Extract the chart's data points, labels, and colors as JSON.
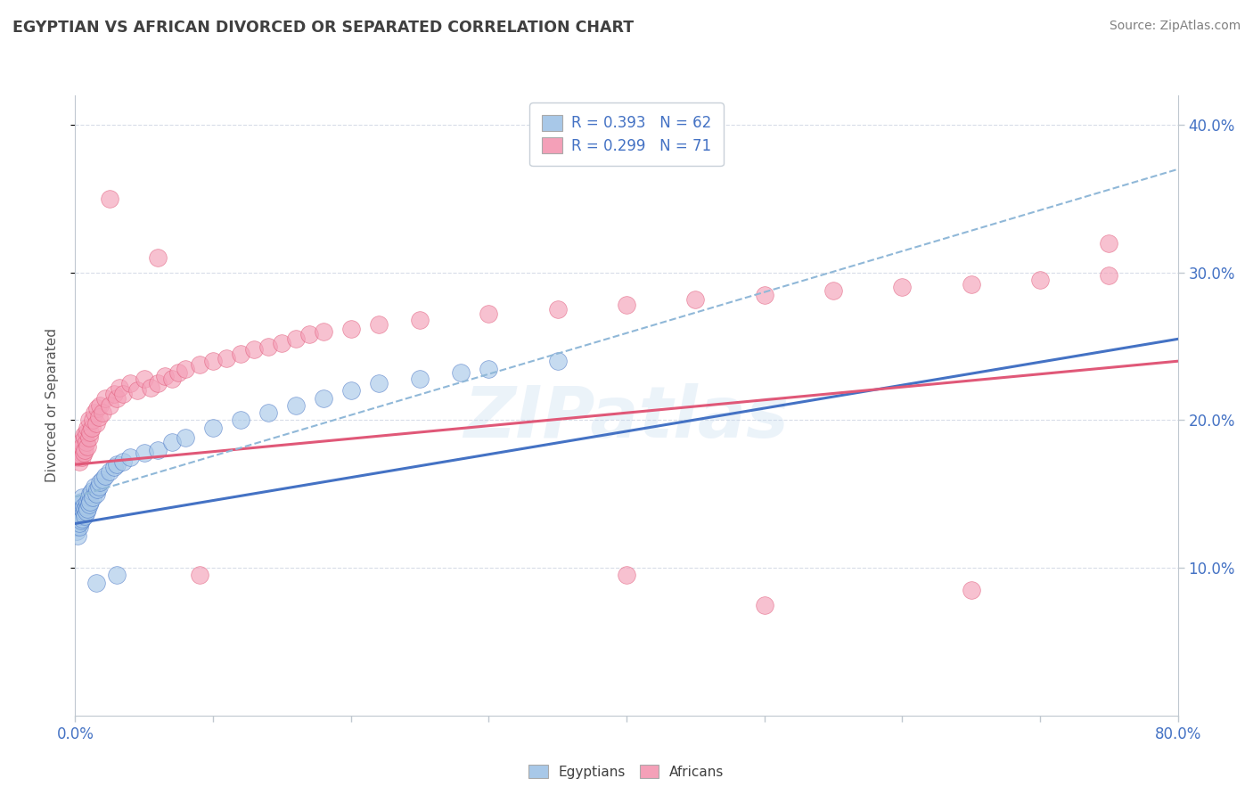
{
  "title": "EGYPTIAN VS AFRICAN DIVORCED OR SEPARATED CORRELATION CHART",
  "source": "Source: ZipAtlas.com",
  "ylabel": "Divorced or Separated",
  "watermark": "ZIPatlas",
  "egyptian_color": "#a8c8e8",
  "african_color": "#f4a0b8",
  "egyptian_line_color": "#4472c4",
  "african_line_color": "#e05878",
  "trendline_dash_color": "#90b8d8",
  "bg_color": "#ffffff",
  "grid_color": "#d8dde8",
  "xlim": [
    0.0,
    0.8
  ],
  "ylim": [
    0.0,
    0.42
  ],
  "y_ticks_positions": [
    0.1,
    0.2,
    0.3,
    0.4
  ],
  "background_plot": "#ffffff",
  "egyptians_scatter": [
    [
      0.001,
      0.13
    ],
    [
      0.001,
      0.125
    ],
    [
      0.001,
      0.135
    ],
    [
      0.001,
      0.128
    ],
    [
      0.002,
      0.132
    ],
    [
      0.002,
      0.138
    ],
    [
      0.002,
      0.122
    ],
    [
      0.002,
      0.14
    ],
    [
      0.003,
      0.135
    ],
    [
      0.003,
      0.128
    ],
    [
      0.003,
      0.142
    ],
    [
      0.003,
      0.13
    ],
    [
      0.004,
      0.138
    ],
    [
      0.004,
      0.132
    ],
    [
      0.004,
      0.145
    ],
    [
      0.004,
      0.135
    ],
    [
      0.005,
      0.14
    ],
    [
      0.005,
      0.133
    ],
    [
      0.005,
      0.148
    ],
    [
      0.006,
      0.138
    ],
    [
      0.006,
      0.142
    ],
    [
      0.007,
      0.14
    ],
    [
      0.007,
      0.135
    ],
    [
      0.008,
      0.142
    ],
    [
      0.008,
      0.138
    ],
    [
      0.009,
      0.145
    ],
    [
      0.009,
      0.14
    ],
    [
      0.01,
      0.148
    ],
    [
      0.01,
      0.143
    ],
    [
      0.011,
      0.15
    ],
    [
      0.011,
      0.145
    ],
    [
      0.012,
      0.152
    ],
    [
      0.013,
      0.148
    ],
    [
      0.014,
      0.155
    ],
    [
      0.015,
      0.15
    ],
    [
      0.016,
      0.153
    ],
    [
      0.017,
      0.155
    ],
    [
      0.018,
      0.158
    ],
    [
      0.02,
      0.16
    ],
    [
      0.022,
      0.162
    ],
    [
      0.025,
      0.165
    ],
    [
      0.028,
      0.168
    ],
    [
      0.03,
      0.17
    ],
    [
      0.035,
      0.172
    ],
    [
      0.04,
      0.175
    ],
    [
      0.05,
      0.178
    ],
    [
      0.06,
      0.18
    ],
    [
      0.07,
      0.185
    ],
    [
      0.08,
      0.188
    ],
    [
      0.1,
      0.195
    ],
    [
      0.12,
      0.2
    ],
    [
      0.14,
      0.205
    ],
    [
      0.16,
      0.21
    ],
    [
      0.18,
      0.215
    ],
    [
      0.2,
      0.22
    ],
    [
      0.22,
      0.225
    ],
    [
      0.25,
      0.228
    ],
    [
      0.28,
      0.232
    ],
    [
      0.3,
      0.235
    ],
    [
      0.35,
      0.24
    ],
    [
      0.015,
      0.09
    ],
    [
      0.03,
      0.095
    ]
  ],
  "africans_scatter": [
    [
      0.002,
      0.175
    ],
    [
      0.003,
      0.172
    ],
    [
      0.003,
      0.18
    ],
    [
      0.004,
      0.178
    ],
    [
      0.004,
      0.185
    ],
    [
      0.005,
      0.175
    ],
    [
      0.005,
      0.182
    ],
    [
      0.006,
      0.178
    ],
    [
      0.006,
      0.19
    ],
    [
      0.007,
      0.18
    ],
    [
      0.007,
      0.188
    ],
    [
      0.008,
      0.185
    ],
    [
      0.008,
      0.192
    ],
    [
      0.009,
      0.182
    ],
    [
      0.009,
      0.195
    ],
    [
      0.01,
      0.188
    ],
    [
      0.01,
      0.2
    ],
    [
      0.011,
      0.192
    ],
    [
      0.012,
      0.195
    ],
    [
      0.013,
      0.2
    ],
    [
      0.014,
      0.205
    ],
    [
      0.015,
      0.198
    ],
    [
      0.016,
      0.208
    ],
    [
      0.017,
      0.202
    ],
    [
      0.018,
      0.21
    ],
    [
      0.02,
      0.205
    ],
    [
      0.022,
      0.215
    ],
    [
      0.025,
      0.21
    ],
    [
      0.028,
      0.218
    ],
    [
      0.03,
      0.215
    ],
    [
      0.032,
      0.222
    ],
    [
      0.035,
      0.218
    ],
    [
      0.04,
      0.225
    ],
    [
      0.045,
      0.22
    ],
    [
      0.05,
      0.228
    ],
    [
      0.055,
      0.222
    ],
    [
      0.06,
      0.225
    ],
    [
      0.065,
      0.23
    ],
    [
      0.07,
      0.228
    ],
    [
      0.075,
      0.232
    ],
    [
      0.08,
      0.235
    ],
    [
      0.09,
      0.238
    ],
    [
      0.1,
      0.24
    ],
    [
      0.11,
      0.242
    ],
    [
      0.12,
      0.245
    ],
    [
      0.13,
      0.248
    ],
    [
      0.14,
      0.25
    ],
    [
      0.15,
      0.252
    ],
    [
      0.16,
      0.255
    ],
    [
      0.17,
      0.258
    ],
    [
      0.18,
      0.26
    ],
    [
      0.2,
      0.262
    ],
    [
      0.22,
      0.265
    ],
    [
      0.25,
      0.268
    ],
    [
      0.3,
      0.272
    ],
    [
      0.35,
      0.275
    ],
    [
      0.4,
      0.278
    ],
    [
      0.45,
      0.282
    ],
    [
      0.5,
      0.285
    ],
    [
      0.55,
      0.288
    ],
    [
      0.6,
      0.29
    ],
    [
      0.65,
      0.292
    ],
    [
      0.7,
      0.295
    ],
    [
      0.75,
      0.298
    ],
    [
      0.025,
      0.35
    ],
    [
      0.06,
      0.31
    ],
    [
      0.75,
      0.32
    ],
    [
      0.09,
      0.095
    ],
    [
      0.5,
      0.075
    ],
    [
      0.65,
      0.085
    ],
    [
      0.4,
      0.095
    ]
  ],
  "eg_trend_start": 0.13,
  "eg_trend_end": 0.255,
  "af_trend_start": 0.17,
  "af_trend_end": 0.24,
  "dash_trend_start": 0.148,
  "dash_trend_end": 0.37
}
